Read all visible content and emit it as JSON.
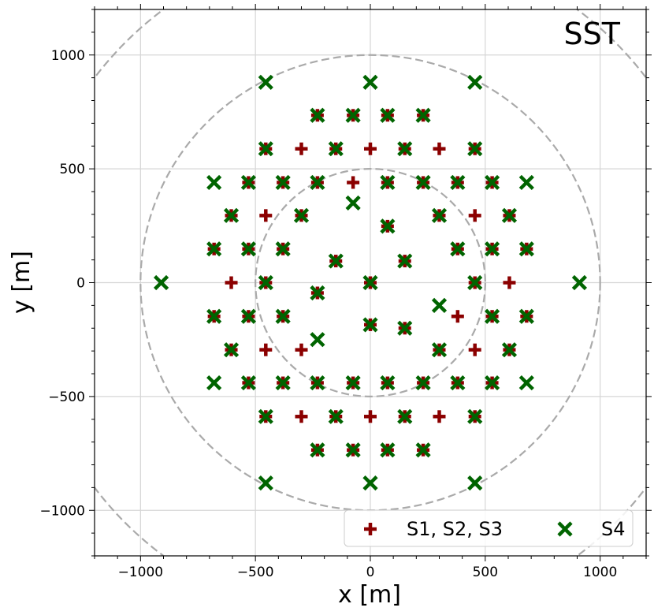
{
  "chart_data": {
    "type": "scatter",
    "title": "SST",
    "xlabel": "x [m]",
    "ylabel": "y [m]",
    "xlim": [
      -1200,
      1200
    ],
    "ylim": [
      -1200,
      1200
    ],
    "grid": true,
    "xticks": [
      -1000,
      -500,
      0,
      500,
      1000
    ],
    "yticks": [
      -1000,
      -500,
      0,
      500,
      1000
    ],
    "xtick_labels": [
      "−1000",
      "−500",
      "0",
      "500",
      "1000"
    ],
    "ytick_labels": [
      "−1000",
      "−500",
      "0",
      "500",
      "1000"
    ],
    "circles_radius_m": [
      500,
      1000,
      1500
    ],
    "legend_position": "bottom-right",
    "series": [
      {
        "name": "S1, S2, S3",
        "marker": "plus",
        "color": "#8b0000",
        "points": [
          [
            -230,
            735
          ],
          [
            -75,
            735
          ],
          [
            75,
            735
          ],
          [
            230,
            735
          ],
          [
            -455,
            588
          ],
          [
            -300,
            588
          ],
          [
            -150,
            588
          ],
          [
            0,
            588
          ],
          [
            150,
            588
          ],
          [
            300,
            588
          ],
          [
            455,
            588
          ],
          [
            -530,
            440
          ],
          [
            -380,
            440
          ],
          [
            -230,
            440
          ],
          [
            -75,
            440
          ],
          [
            75,
            440
          ],
          [
            230,
            440
          ],
          [
            380,
            440
          ],
          [
            530,
            440
          ],
          [
            -605,
            295
          ],
          [
            -455,
            295
          ],
          [
            -300,
            295
          ],
          [
            300,
            295
          ],
          [
            455,
            295
          ],
          [
            605,
            295
          ],
          [
            -680,
            148
          ],
          [
            -530,
            148
          ],
          [
            -380,
            148
          ],
          [
            -150,
            95
          ],
          [
            75,
            248
          ],
          [
            150,
            95
          ],
          [
            380,
            148
          ],
          [
            530,
            148
          ],
          [
            680,
            148
          ],
          [
            -605,
            0
          ],
          [
            -455,
            0
          ],
          [
            0,
            0
          ],
          [
            455,
            0
          ],
          [
            605,
            0
          ],
          [
            -680,
            -148
          ],
          [
            -530,
            -148
          ],
          [
            -380,
            -148
          ],
          [
            -230,
            -45
          ],
          [
            0,
            -185
          ],
          [
            150,
            -200
          ],
          [
            380,
            -148
          ],
          [
            530,
            -148
          ],
          [
            680,
            -148
          ],
          [
            -605,
            -295
          ],
          [
            -455,
            -295
          ],
          [
            -300,
            -295
          ],
          [
            300,
            -295
          ],
          [
            455,
            -295
          ],
          [
            605,
            -295
          ],
          [
            -530,
            -440
          ],
          [
            -380,
            -440
          ],
          [
            -230,
            -440
          ],
          [
            -75,
            -440
          ],
          [
            75,
            -440
          ],
          [
            230,
            -440
          ],
          [
            380,
            -440
          ],
          [
            530,
            -440
          ],
          [
            -455,
            -588
          ],
          [
            -300,
            -588
          ],
          [
            -150,
            -588
          ],
          [
            0,
            -588
          ],
          [
            150,
            -588
          ],
          [
            300,
            -588
          ],
          [
            455,
            -588
          ],
          [
            -230,
            -735
          ],
          [
            -75,
            -735
          ],
          [
            75,
            -735
          ],
          [
            230,
            -735
          ]
        ]
      },
      {
        "name": "S4",
        "marker": "x",
        "color": "#006400",
        "points": [
          [
            -455,
            880
          ],
          [
            0,
            880
          ],
          [
            455,
            880
          ],
          [
            -230,
            735
          ],
          [
            -75,
            735
          ],
          [
            75,
            735
          ],
          [
            230,
            735
          ],
          [
            -455,
            588
          ],
          [
            -150,
            588
          ],
          [
            150,
            588
          ],
          [
            455,
            588
          ],
          [
            -680,
            440
          ],
          [
            -530,
            440
          ],
          [
            -380,
            440
          ],
          [
            -230,
            440
          ],
          [
            75,
            440
          ],
          [
            230,
            440
          ],
          [
            380,
            440
          ],
          [
            530,
            440
          ],
          [
            680,
            440
          ],
          [
            -75,
            350
          ],
          [
            -605,
            295
          ],
          [
            -300,
            295
          ],
          [
            300,
            295
          ],
          [
            605,
            295
          ],
          [
            75,
            248
          ],
          [
            -680,
            148
          ],
          [
            -530,
            148
          ],
          [
            -380,
            148
          ],
          [
            -150,
            95
          ],
          [
            150,
            95
          ],
          [
            380,
            148
          ],
          [
            530,
            148
          ],
          [
            680,
            148
          ],
          [
            -910,
            0
          ],
          [
            -455,
            0
          ],
          [
            0,
            0
          ],
          [
            455,
            0
          ],
          [
            910,
            0
          ],
          [
            300,
            -100
          ],
          [
            -680,
            -148
          ],
          [
            -530,
            -148
          ],
          [
            -380,
            -148
          ],
          [
            -230,
            -45
          ],
          [
            0,
            -185
          ],
          [
            150,
            -200
          ],
          [
            530,
            -148
          ],
          [
            680,
            -148
          ],
          [
            -230,
            -250
          ],
          [
            -605,
            -295
          ],
          [
            300,
            -295
          ],
          [
            605,
            -295
          ],
          [
            -680,
            -440
          ],
          [
            -530,
            -440
          ],
          [
            -380,
            -440
          ],
          [
            -230,
            -440
          ],
          [
            -75,
            -440
          ],
          [
            75,
            -440
          ],
          [
            230,
            -440
          ],
          [
            380,
            -440
          ],
          [
            530,
            -440
          ],
          [
            680,
            -440
          ],
          [
            -455,
            -588
          ],
          [
            -150,
            -588
          ],
          [
            150,
            -588
          ],
          [
            455,
            -588
          ],
          [
            -230,
            -735
          ],
          [
            -75,
            -735
          ],
          [
            75,
            -735
          ],
          [
            230,
            -735
          ],
          [
            -455,
            -880
          ],
          [
            0,
            -880
          ],
          [
            455,
            -880
          ]
        ]
      }
    ]
  }
}
